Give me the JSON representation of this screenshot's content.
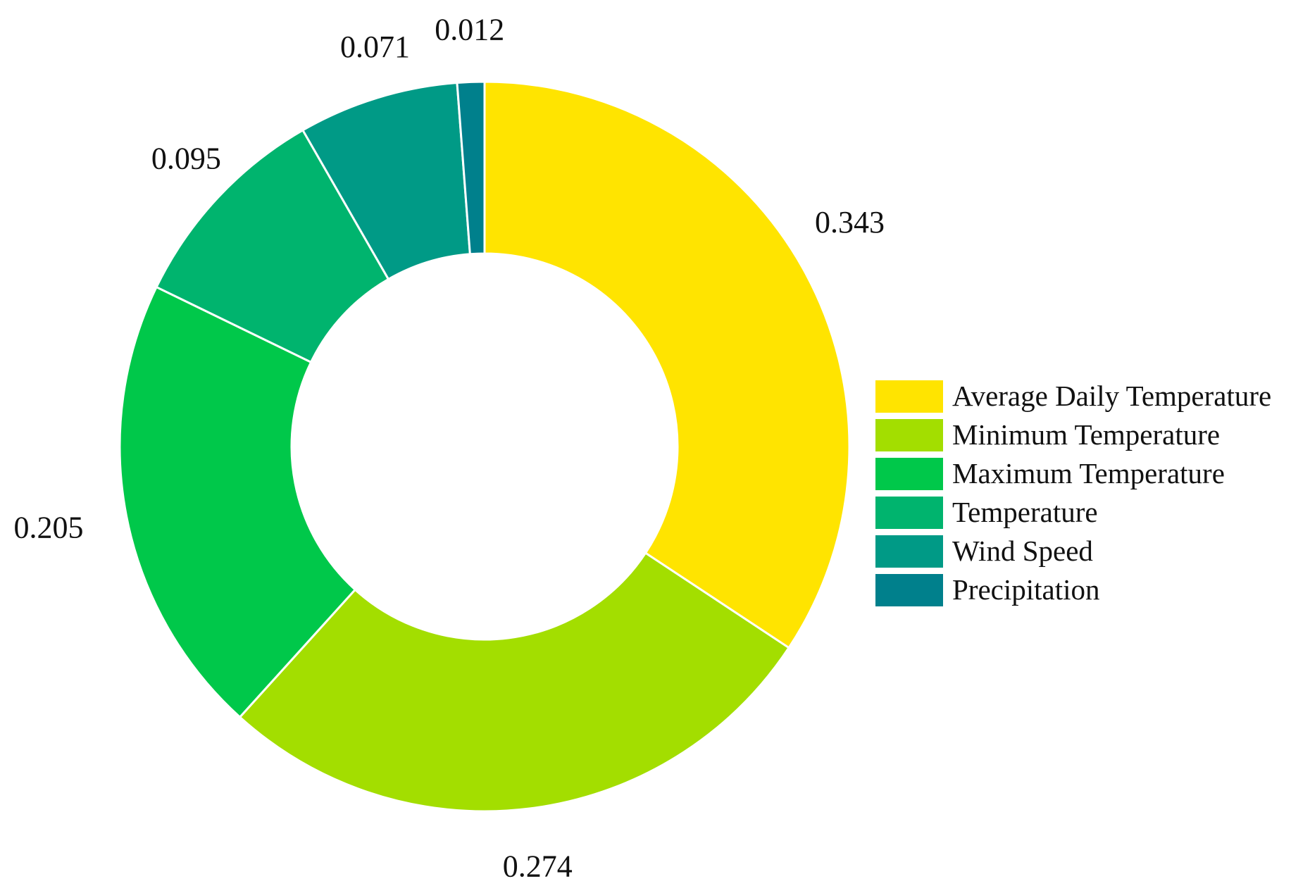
{
  "chart_data": {
    "type": "pie",
    "variant": "donut",
    "categories": [
      "Average Daily Temperature",
      "Minimum Temperature",
      "Maximum Temperature",
      "Temperature",
      "Wind Speed",
      "Precipitation"
    ],
    "values": [
      0.343,
      0.274,
      0.205,
      0.095,
      0.071,
      0.012
    ],
    "value_labels": [
      "0.343",
      "0.274",
      "0.205",
      "0.095",
      "0.071",
      "0.012"
    ],
    "colors": [
      "#ffe400",
      "#a3de00",
      "#00c84a",
      "#00b46e",
      "#009a86",
      "#00808c"
    ],
    "legend_position": "right",
    "start_angle": "top, clockwise"
  }
}
